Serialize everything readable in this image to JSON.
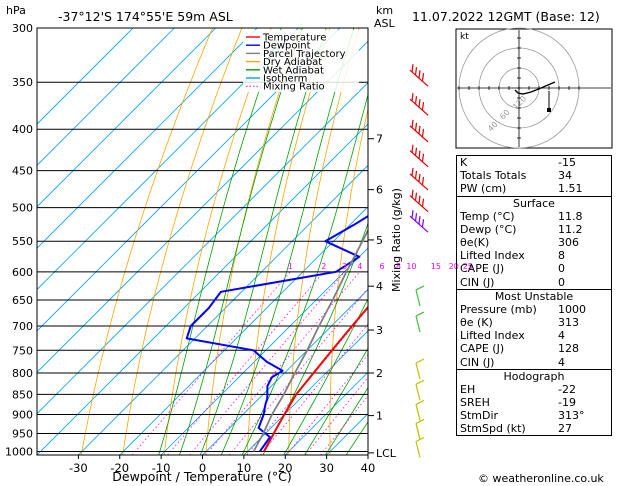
{
  "header": {
    "location": "-37°12'S  174°55'E  59m  ASL",
    "datetime": "11.07.2022  12GMT  (Base: 12)",
    "hpa_label": "hPa",
    "km_label": "km",
    "asl_label": "ASL"
  },
  "chart_data": {
    "type": "line",
    "xlabel": "Dewpoint / Temperature (°C)",
    "y2label": "Mixing Ratio (g/kg)",
    "x_ticks": [
      -30,
      -20,
      -10,
      0,
      10,
      20,
      30,
      40
    ],
    "xlim": [
      -40,
      40
    ],
    "ylim_hpa": [
      1010,
      300
    ],
    "pressure_ticks": [
      300,
      350,
      400,
      450,
      500,
      550,
      600,
      650,
      700,
      750,
      800,
      850,
      900,
      950,
      1000
    ],
    "km_ticks": [
      {
        "label": "7",
        "hpa": 411
      },
      {
        "label": "6",
        "hpa": 475
      },
      {
        "label": "5",
        "hpa": 548
      },
      {
        "label": "4",
        "hpa": 625
      },
      {
        "label": "3",
        "hpa": 708
      },
      {
        "label": "2",
        "hpa": 800
      },
      {
        "label": "1",
        "hpa": 903
      },
      {
        "label": "LCL",
        "hpa": 1004
      }
    ],
    "mixing_ratio_labels": [
      "1",
      "2",
      "3",
      "4",
      "6",
      "8",
      "10",
      "15",
      "20",
      "25"
    ],
    "legend": [
      {
        "name": "Temperature",
        "color": "#ff0000"
      },
      {
        "name": "Dewpoint",
        "color": "#0000ff"
      },
      {
        "name": "Parcel Trajectory",
        "color": "#808080"
      },
      {
        "name": "Dry Adiabat",
        "color": "#ffa500"
      },
      {
        "name": "Wet Adiabat",
        "color": "#00a000"
      },
      {
        "name": "Isotherm",
        "color": "#00a0ff"
      },
      {
        "name": "Mixing Ratio",
        "color": "#ff00ff"
      }
    ],
    "series": [
      {
        "name": "Temperature",
        "points": [
          [
            14,
            1000
          ],
          [
            13,
            975
          ],
          [
            12,
            950
          ],
          [
            11,
            925
          ],
          [
            10,
            900
          ],
          [
            8,
            850
          ],
          [
            7,
            800
          ],
          [
            6,
            750
          ],
          [
            5,
            700
          ],
          [
            4,
            650
          ],
          [
            2,
            600
          ],
          [
            0,
            550
          ],
          [
            -2,
            500
          ],
          [
            -4,
            470
          ],
          [
            -6,
            450
          ],
          [
            -7,
            425
          ],
          [
            -8,
            400
          ],
          [
            -11,
            375
          ],
          [
            -14,
            350
          ],
          [
            -18,
            325
          ],
          [
            -21,
            300
          ]
        ]
      },
      {
        "name": "Dewpoint",
        "points": [
          [
            13,
            1000
          ],
          [
            12,
            960
          ],
          [
            7,
            935
          ],
          [
            5,
            900
          ],
          [
            3,
            875
          ],
          [
            2,
            860
          ],
          [
            -1,
            830
          ],
          [
            -2,
            810
          ],
          [
            -1,
            795
          ],
          [
            -7,
            775
          ],
          [
            -13,
            750
          ],
          [
            -32,
            725
          ],
          [
            -34,
            700
          ],
          [
            -34,
            665
          ],
          [
            -35,
            635
          ],
          [
            -12,
            600
          ],
          [
            -10,
            575
          ],
          [
            -22,
            550
          ],
          [
            -19,
            525
          ],
          [
            -17,
            505
          ],
          [
            -21,
            480
          ],
          [
            -14,
            475
          ],
          [
            -11,
            460
          ],
          [
            -10,
            435
          ],
          [
            -8,
            425
          ],
          [
            -6,
            400
          ],
          [
            -6,
            390
          ],
          [
            -12,
            355
          ],
          [
            -17,
            320
          ],
          [
            -22,
            300
          ]
        ]
      },
      {
        "name": "Parcel Trajectory",
        "points": [
          [
            11.5,
            1000
          ],
          [
            9.5,
            950
          ],
          [
            7,
            900
          ],
          [
            5,
            850
          ],
          [
            2.5,
            800
          ],
          [
            0,
            750
          ],
          [
            -3,
            700
          ],
          [
            -6,
            650
          ],
          [
            -9.5,
            600
          ],
          [
            -13,
            550
          ],
          [
            -17,
            500
          ],
          [
            -22,
            450
          ],
          [
            -28,
            400
          ],
          [
            -35,
            350
          ],
          [
            -43,
            300
          ]
        ]
      }
    ],
    "hodograph_label": "kt",
    "hodograph_rings": [
      "40",
      "60",
      "120"
    ],
    "wind_barbs": {
      "pressures": [
        350,
        380,
        410,
        440,
        470,
        500,
        530,
        650,
        700,
        800,
        850,
        900,
        950,
        1000
      ],
      "colors": [
        "#e00000",
        "#e00000",
        "#e00000",
        "#e00000",
        "#e00000",
        "#e00000",
        "#8000ff",
        "#40c040",
        "#40c040",
        "#c0c000",
        "#c0c000",
        "#c0c000",
        "#c0c000",
        "#c0c000"
      ]
    }
  },
  "indices": {
    "top": [
      {
        "label": "K",
        "value": "-15"
      },
      {
        "label": "Totals Totals",
        "value": "34"
      },
      {
        "label": "PW (cm)",
        "value": "1.51"
      }
    ],
    "surface": {
      "title": "Surface",
      "rows": [
        {
          "label": "Temp (°C)",
          "value": "11.8"
        },
        {
          "label": "Dewp (°C)",
          "value": "11.2"
        },
        {
          "label": "θe(K)",
          "value": "306"
        },
        {
          "label": "Lifted Index",
          "value": "8"
        },
        {
          "label": "CAPE (J)",
          "value": "0"
        },
        {
          "label": "CIN (J)",
          "value": "0"
        }
      ]
    },
    "most_unstable": {
      "title": "Most Unstable",
      "rows": [
        {
          "label": "Pressure (mb)",
          "value": "1000"
        },
        {
          "label": "θe (K)",
          "value": "313"
        },
        {
          "label": "Lifted Index",
          "value": "4"
        },
        {
          "label": "CAPE (J)",
          "value": "128"
        },
        {
          "label": "CIN (J)",
          "value": "4"
        }
      ]
    },
    "hodograph": {
      "title": "Hodograph",
      "rows": [
        {
          "label": "EH",
          "value": "-22"
        },
        {
          "label": "SREH",
          "value": "-19"
        },
        {
          "label": "StmDir",
          "value": "313°"
        },
        {
          "label": "StmSpd (kt)",
          "value": "27"
        }
      ]
    }
  },
  "copyright": "© weatheronline.co.uk"
}
